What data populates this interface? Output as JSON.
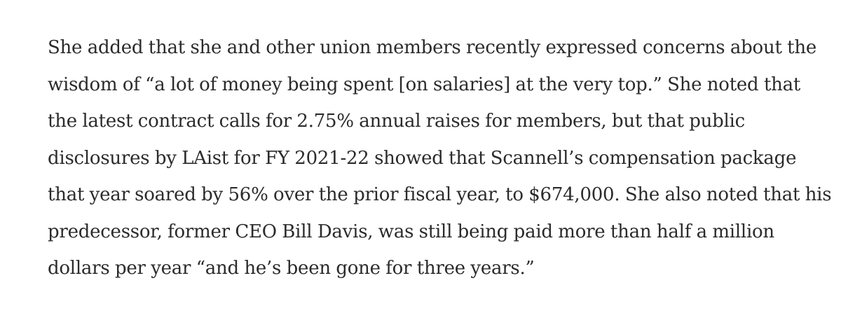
{
  "article": {
    "paragraph_lines": [
      "She added that she and other union members recently expressed concerns about the",
      "wisdom of “a lot of money being spent [on salaries] at the very top.” She noted that",
      "the latest contract calls for 2.75% annual raises for members, but that public",
      "disclosures by LAist for FY 2021-22 showed that Scannell’s compensation package",
      "that year soared by 56% over the prior fiscal year, to $674,000. She also noted that his",
      "predecessor, former CEO Bill Davis, was still being paid more than half a million",
      "dollars per year “and he’s been gone for three years.”"
    ]
  }
}
